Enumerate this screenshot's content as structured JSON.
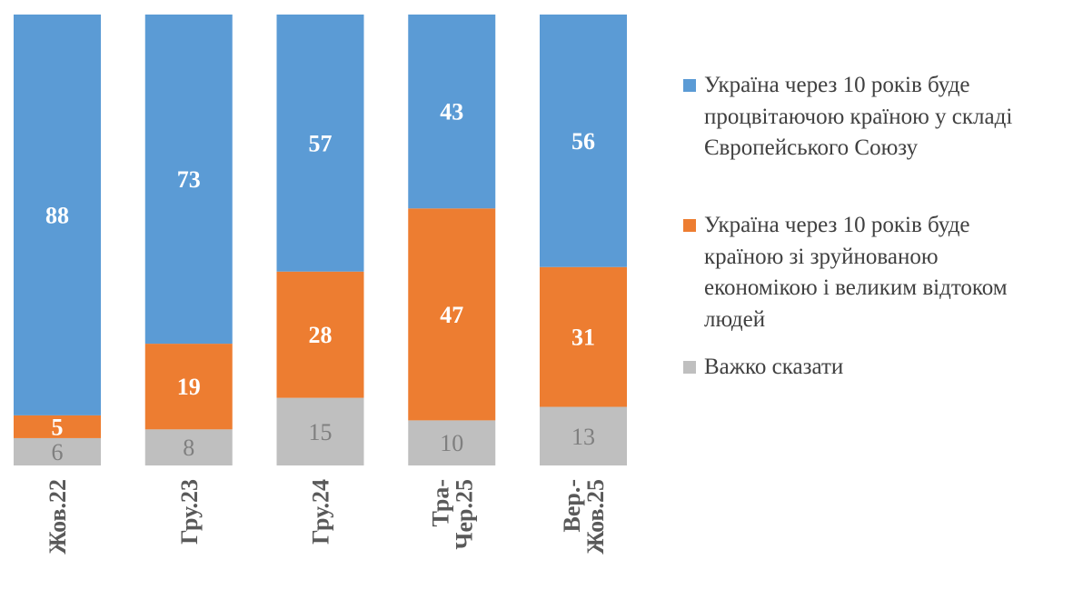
{
  "chart_data": {
    "type": "bar",
    "stacked": true,
    "categories": [
      "Жов.22",
      "Гру.23",
      "Гру.24",
      "Тра-\nЧер.25",
      "Вер.-\nЖов.25"
    ],
    "series": [
      {
        "name": "Україна через 10 років буде процвітаючою країною у складі Європейського Союзу",
        "color": "#5B9BD5",
        "values": [
          88,
          73,
          57,
          43,
          56
        ]
      },
      {
        "name": "Україна через 10 років буде країною зі зруйнованою економікою і великим відтоком людей",
        "color": "#ED7D31",
        "values": [
          5,
          19,
          28,
          47,
          31
        ]
      },
      {
        "name": "Важко сказати",
        "color": "#BFBFBF",
        "values": [
          6,
          8,
          15,
          10,
          13
        ]
      }
    ],
    "ylim": [
      0,
      100
    ],
    "grid": false,
    "legend_position": "right",
    "axes_visible": false
  },
  "legend": {
    "items": [
      "Україна через 10 років буде\nпроцвітаючою країною у складі\nЄвропейського Союзу",
      "Україна через 10 років буде\nкраїною зі зруйнованою\nекономікою і великим відтоком\nлюдей",
      "Важко сказати"
    ]
  }
}
